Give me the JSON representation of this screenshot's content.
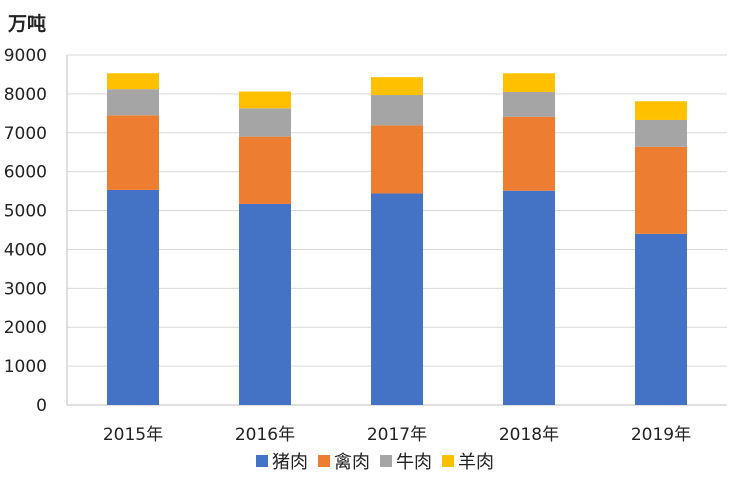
{
  "chart_data": {
    "type": "bar",
    "stacked": true,
    "unit_label": "万吨",
    "categories": [
      "2015年",
      "2016年",
      "2017年",
      "2018年",
      "2019年"
    ],
    "series": [
      {
        "name": "猪肉",
        "color": "#4472C4",
        "values": [
          5530,
          5170,
          5440,
          5510,
          4400
        ]
      },
      {
        "name": "禽肉",
        "color": "#ED7D31",
        "values": [
          1920,
          1730,
          1750,
          1900,
          2240
        ]
      },
      {
        "name": "牛肉",
        "color": "#A5A5A5",
        "values": [
          670,
          730,
          780,
          640,
          690
        ]
      },
      {
        "name": "羊肉",
        "color": "#FFC000",
        "values": [
          410,
          430,
          460,
          480,
          480
        ]
      }
    ],
    "y_ticks": [
      "0",
      "1000",
      "2000",
      "3000",
      "4000",
      "5000",
      "6000",
      "7000",
      "8000",
      "9000"
    ],
    "ylim": [
      0,
      9000
    ],
    "grid": true,
    "legend_position": "bottom"
  }
}
